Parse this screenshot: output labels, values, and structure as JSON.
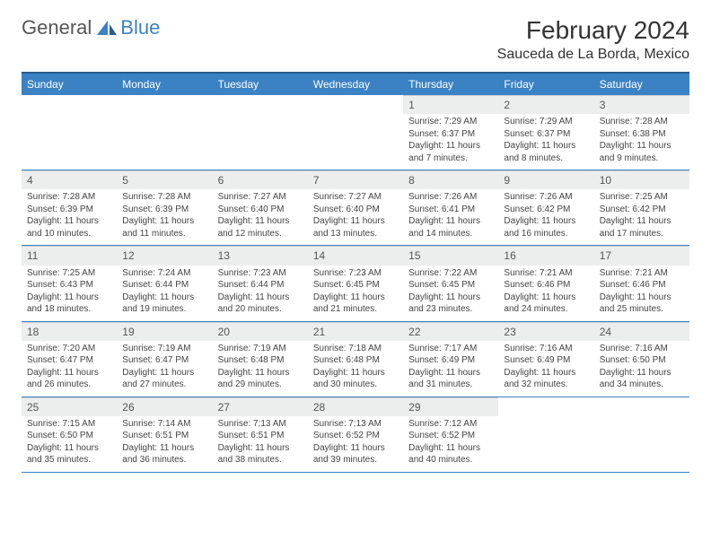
{
  "logo": {
    "general": "General",
    "blue": "Blue"
  },
  "title": "February 2024",
  "location": "Sauceda de La Borda, Mexico",
  "colors": {
    "header_bg": "#3b82c4",
    "header_border": "#2a5a8a",
    "daynum_bg": "#eceded",
    "row_border": "#3b82c4",
    "text": "#333333",
    "muted": "#555555"
  },
  "dayNames": [
    "Sunday",
    "Monday",
    "Tuesday",
    "Wednesday",
    "Thursday",
    "Friday",
    "Saturday"
  ],
  "weeks": [
    [
      null,
      null,
      null,
      null,
      {
        "n": "1",
        "sr": "7:29 AM",
        "ss": "6:37 PM",
        "dl": "11 hours and 7 minutes."
      },
      {
        "n": "2",
        "sr": "7:29 AM",
        "ss": "6:37 PM",
        "dl": "11 hours and 8 minutes."
      },
      {
        "n": "3",
        "sr": "7:28 AM",
        "ss": "6:38 PM",
        "dl": "11 hours and 9 minutes."
      }
    ],
    [
      {
        "n": "4",
        "sr": "7:28 AM",
        "ss": "6:39 PM",
        "dl": "11 hours and 10 minutes."
      },
      {
        "n": "5",
        "sr": "7:28 AM",
        "ss": "6:39 PM",
        "dl": "11 hours and 11 minutes."
      },
      {
        "n": "6",
        "sr": "7:27 AM",
        "ss": "6:40 PM",
        "dl": "11 hours and 12 minutes."
      },
      {
        "n": "7",
        "sr": "7:27 AM",
        "ss": "6:40 PM",
        "dl": "11 hours and 13 minutes."
      },
      {
        "n": "8",
        "sr": "7:26 AM",
        "ss": "6:41 PM",
        "dl": "11 hours and 14 minutes."
      },
      {
        "n": "9",
        "sr": "7:26 AM",
        "ss": "6:42 PM",
        "dl": "11 hours and 16 minutes."
      },
      {
        "n": "10",
        "sr": "7:25 AM",
        "ss": "6:42 PM",
        "dl": "11 hours and 17 minutes."
      }
    ],
    [
      {
        "n": "11",
        "sr": "7:25 AM",
        "ss": "6:43 PM",
        "dl": "11 hours and 18 minutes."
      },
      {
        "n": "12",
        "sr": "7:24 AM",
        "ss": "6:44 PM",
        "dl": "11 hours and 19 minutes."
      },
      {
        "n": "13",
        "sr": "7:23 AM",
        "ss": "6:44 PM",
        "dl": "11 hours and 20 minutes."
      },
      {
        "n": "14",
        "sr": "7:23 AM",
        "ss": "6:45 PM",
        "dl": "11 hours and 21 minutes."
      },
      {
        "n": "15",
        "sr": "7:22 AM",
        "ss": "6:45 PM",
        "dl": "11 hours and 23 minutes."
      },
      {
        "n": "16",
        "sr": "7:21 AM",
        "ss": "6:46 PM",
        "dl": "11 hours and 24 minutes."
      },
      {
        "n": "17",
        "sr": "7:21 AM",
        "ss": "6:46 PM",
        "dl": "11 hours and 25 minutes."
      }
    ],
    [
      {
        "n": "18",
        "sr": "7:20 AM",
        "ss": "6:47 PM",
        "dl": "11 hours and 26 minutes."
      },
      {
        "n": "19",
        "sr": "7:19 AM",
        "ss": "6:47 PM",
        "dl": "11 hours and 27 minutes."
      },
      {
        "n": "20",
        "sr": "7:19 AM",
        "ss": "6:48 PM",
        "dl": "11 hours and 29 minutes."
      },
      {
        "n": "21",
        "sr": "7:18 AM",
        "ss": "6:48 PM",
        "dl": "11 hours and 30 minutes."
      },
      {
        "n": "22",
        "sr": "7:17 AM",
        "ss": "6:49 PM",
        "dl": "11 hours and 31 minutes."
      },
      {
        "n": "23",
        "sr": "7:16 AM",
        "ss": "6:49 PM",
        "dl": "11 hours and 32 minutes."
      },
      {
        "n": "24",
        "sr": "7:16 AM",
        "ss": "6:50 PM",
        "dl": "11 hours and 34 minutes."
      }
    ],
    [
      {
        "n": "25",
        "sr": "7:15 AM",
        "ss": "6:50 PM",
        "dl": "11 hours and 35 minutes."
      },
      {
        "n": "26",
        "sr": "7:14 AM",
        "ss": "6:51 PM",
        "dl": "11 hours and 36 minutes."
      },
      {
        "n": "27",
        "sr": "7:13 AM",
        "ss": "6:51 PM",
        "dl": "11 hours and 38 minutes."
      },
      {
        "n": "28",
        "sr": "7:13 AM",
        "ss": "6:52 PM",
        "dl": "11 hours and 39 minutes."
      },
      {
        "n": "29",
        "sr": "7:12 AM",
        "ss": "6:52 PM",
        "dl": "11 hours and 40 minutes."
      },
      null,
      null
    ]
  ],
  "labels": {
    "sunrise": "Sunrise:",
    "sunset": "Sunset:",
    "daylight": "Daylight:"
  }
}
